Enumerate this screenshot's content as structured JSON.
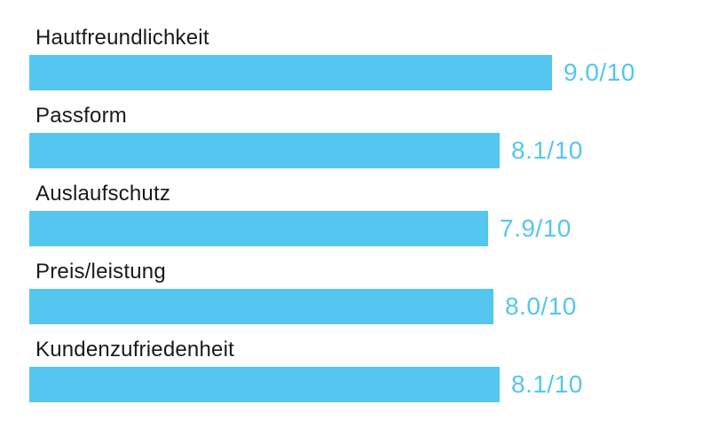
{
  "chart_data": {
    "type": "bar",
    "orientation": "horizontal",
    "title": "",
    "categories": [
      "Hautfreundlichkeit",
      "Passform",
      "Auslaufschutz",
      "Preis/leistung",
      "Kundenzufriedenheit"
    ],
    "values": [
      9.0,
      8.1,
      7.9,
      8.0,
      8.1
    ],
    "value_labels": [
      "9.0/10",
      "8.1/10",
      "7.9/10",
      "8.0/10",
      "8.1/10"
    ],
    "max_value": 10,
    "grid": "off",
    "axes": "none",
    "bar_color": "#55c6ef",
    "value_text_color": "#55c6ef",
    "category_text_color": "#1a1a1a",
    "background_color": "#ffffff"
  }
}
